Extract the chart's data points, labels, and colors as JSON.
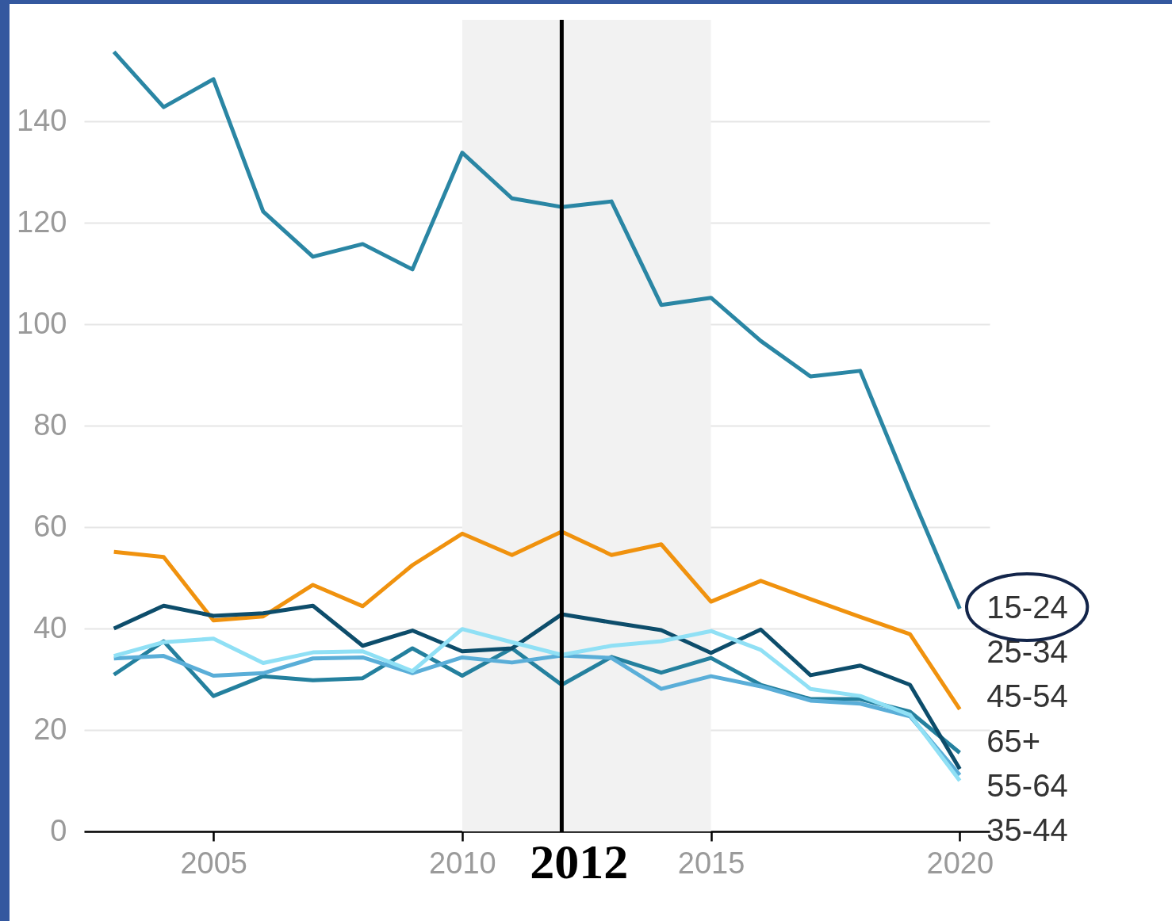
{
  "chart_data": {
    "type": "line",
    "x": [
      2003,
      2004,
      2005,
      2006,
      2007,
      2008,
      2009,
      2010,
      2011,
      2012,
      2013,
      2014,
      2015,
      2016,
      2017,
      2018,
      2019,
      2020
    ],
    "xlim": [
      2002.4,
      2020.6
    ],
    "xticks": [
      2005,
      2010,
      2015,
      2020
    ],
    "ylim": [
      0,
      160
    ],
    "yticks": [
      0,
      20,
      40,
      60,
      80,
      100,
      120,
      140
    ],
    "grid": "y",
    "legend": false,
    "series": [
      {
        "name": "15-24",
        "color": "#2a86a4",
        "values": [
          153.7,
          142.8,
          148.3,
          122.2,
          113.3,
          115.8,
          110.8,
          133.8,
          124.8,
          123.1,
          124.2,
          103.8,
          105.2,
          96.7,
          89.7,
          90.8,
          67,
          43.9
        ]
      },
      {
        "name": "25-34",
        "color": "#f0920e",
        "values": [
          55.1,
          54.1,
          41.6,
          42.4,
          48.6,
          44.4,
          52.5,
          58.7,
          54.5,
          59.1,
          54.5,
          56.6,
          45.3,
          49.4,
          45.8,
          42.3,
          38.9,
          24.1
        ]
      },
      {
        "name": "45-54",
        "color": "#24809e",
        "values": [
          30.9,
          37.5,
          26.7,
          30.6,
          29.8,
          30.2,
          36.1,
          30.7,
          36.1,
          28.9,
          34.4,
          31.3,
          34.2,
          28.9,
          26.1,
          26.1,
          23.6,
          15.5
        ]
      },
      {
        "name": "65+",
        "color": "#0d4d6b",
        "values": [
          40.0,
          44.5,
          42.5,
          43.0,
          44.5,
          36.6,
          39.6,
          35.5,
          36.1,
          42.8,
          41.2,
          39.7,
          35.2,
          39.8,
          30.8,
          32.7,
          28.9,
          12.3
        ]
      },
      {
        "name": "55-64",
        "color": "#5aaed8",
        "values": [
          34.1,
          34.6,
          30.7,
          31.2,
          34.1,
          34.3,
          31.2,
          34.3,
          33.3,
          34.7,
          34.2,
          28.1,
          30.6,
          28.6,
          25.8,
          25.2,
          22.7,
          11.1
        ]
      },
      {
        "name": "35-44",
        "color": "#90e0f5",
        "values": [
          34.6,
          37.3,
          38.0,
          33.2,
          35.3,
          35.5,
          31.6,
          39.9,
          37.3,
          34.8,
          36.6,
          37.5,
          39.5,
          35.8,
          28.1,
          26.7,
          23.0,
          10.0
        ]
      }
    ],
    "ref_lines": [
      {
        "axis": "x",
        "value": 2012,
        "label": "2012",
        "color": "#000000"
      }
    ],
    "bands": [
      {
        "axis": "x",
        "from": 2010,
        "to": 2015,
        "color": "#f2f2f2"
      }
    ]
  }
}
